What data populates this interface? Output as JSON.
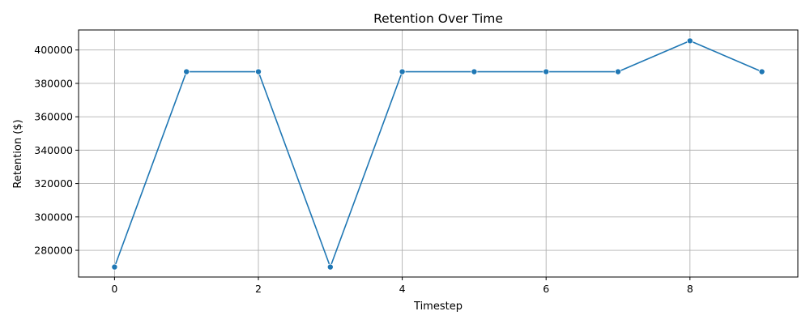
{
  "chart_data": {
    "type": "line",
    "title": "Retention Over Time",
    "xlabel": "Timestep",
    "ylabel": "Retention ($)",
    "x": [
      0,
      1,
      2,
      3,
      4,
      5,
      6,
      7,
      8,
      9
    ],
    "series": [
      {
        "values": [
          270000,
          387000,
          387000,
          270000,
          387000,
          387000,
          387000,
          387000,
          405500,
          387000
        ]
      }
    ],
    "xlim": [
      -0.5,
      9.5
    ],
    "ylim": [
      264000,
      412000
    ],
    "x_ticks": [
      0,
      2,
      4,
      6,
      8
    ],
    "x_tick_labels": [
      "0",
      "2",
      "4",
      "6",
      "8"
    ],
    "y_ticks": [
      280000,
      300000,
      320000,
      340000,
      360000,
      380000,
      400000
    ],
    "y_tick_labels": [
      "280000",
      "300000",
      "320000",
      "340000",
      "360000",
      "380000",
      "400000"
    ],
    "grid": true,
    "marker": "circle",
    "colors": {
      "line": "#1f77b4",
      "grid": "#b0b0b0",
      "axis": "#000000"
    }
  }
}
